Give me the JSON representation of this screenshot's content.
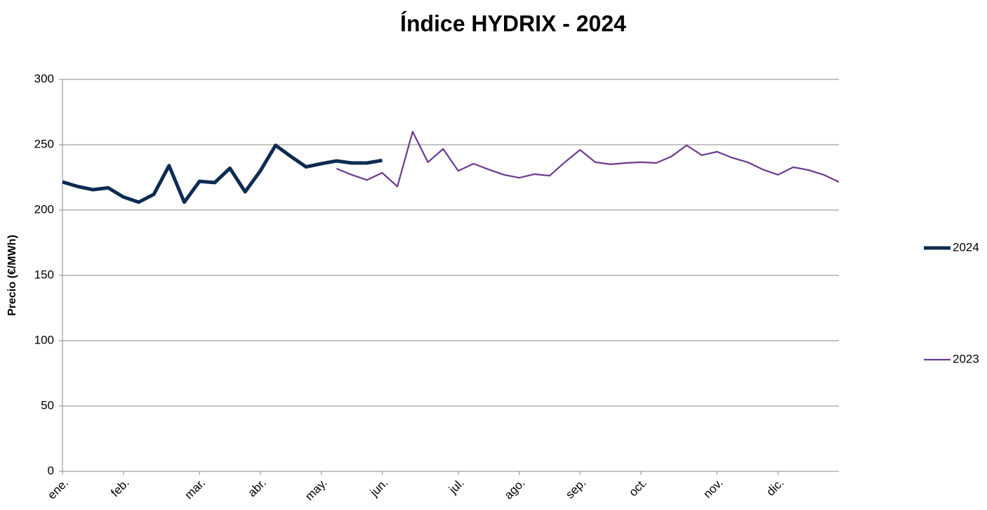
{
  "chart_data": {
    "type": "line",
    "title": "Índice HYDRIX - 2024",
    "y_label": "Precio (€/MWh)",
    "categories": [
      "ene.",
      null,
      null,
      null,
      "feb.",
      null,
      null,
      null,
      null,
      "mar.",
      null,
      null,
      null,
      "abr.",
      null,
      null,
      null,
      "may.",
      null,
      null,
      null,
      "jun.",
      null,
      null,
      null,
      null,
      "jul.",
      null,
      null,
      null,
      "ago.",
      null,
      null,
      null,
      "sep.",
      null,
      null,
      null,
      "oct.",
      null,
      null,
      null,
      null,
      "nov.",
      null,
      null,
      null,
      "dic.",
      null,
      null,
      null,
      null
    ],
    "series": [
      {
        "name": "2024",
        "color": "#0d2b52",
        "values": [
          221.5,
          218,
          215.6,
          217,
          210,
          206,
          212,
          234,
          206,
          222,
          221,
          232,
          214,
          230,
          249.5,
          241,
          233,
          235.5,
          237.6,
          236,
          236,
          238,
          null,
          null,
          null,
          null,
          null,
          null,
          null,
          null,
          null,
          null,
          null,
          null,
          null,
          null,
          null,
          null,
          null,
          null,
          null,
          null,
          null,
          null,
          null,
          null,
          null,
          null,
          null,
          null,
          null,
          null
        ]
      },
      {
        "name": "2023",
        "color": "#6a3a90",
        "values": [
          null,
          null,
          null,
          null,
          null,
          null,
          null,
          null,
          null,
          null,
          null,
          null,
          null,
          null,
          null,
          null,
          null,
          null,
          231.7,
          227,
          223,
          228.5,
          218,
          260,
          236.6,
          246.8,
          230,
          235.5,
          231,
          227,
          224.7,
          227.5,
          226.3,
          236.6,
          246,
          236.6,
          235,
          236,
          236.6,
          236,
          241,
          249.5,
          242,
          244.6,
          240,
          236.6,
          231,
          227,
          232.8,
          230.6,
          227,
          221.5
        ]
      }
    ],
    "ylim": [
      0,
      300
    ],
    "yticks": [
      0,
      50,
      100,
      150,
      200,
      250,
      300
    ],
    "grid": true,
    "legend": "right"
  }
}
